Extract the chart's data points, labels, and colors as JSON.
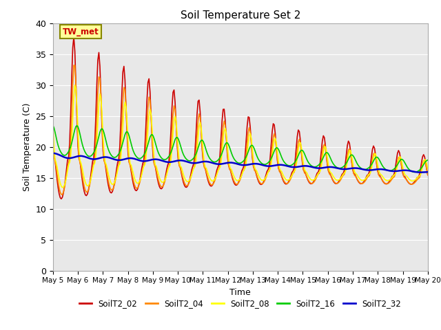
{
  "title": "Soil Temperature Set 2",
  "xlabel": "Time",
  "ylabel": "Soil Temperature (C)",
  "ylim": [
    0,
    40
  ],
  "bg_color": "#e8e8e8",
  "annotation_text": "TW_met",
  "annotation_color": "#cc0000",
  "annotation_bg": "#ffff99",
  "annotation_border": "#888800",
  "tick_labels": [
    "May 5",
    "May 6",
    "May 7",
    "May 8",
    "May 9",
    "May 10",
    "May 11",
    "May 12",
    "May 13",
    "May 14",
    "May 15",
    "May 16",
    "May 17",
    "May 18",
    "May 19",
    "May 20"
  ],
  "series_names": [
    "SoilT2_02",
    "SoilT2_04",
    "SoilT2_08",
    "SoilT2_16",
    "SoilT2_32"
  ],
  "series_colors": [
    "#cc0000",
    "#ff8800",
    "#ffff00",
    "#00cc00",
    "#0000cc"
  ],
  "series_lw": [
    1.2,
    1.2,
    1.2,
    1.2,
    1.8
  ],
  "yticks": [
    0,
    5,
    10,
    15,
    20,
    25,
    30,
    35,
    40
  ]
}
